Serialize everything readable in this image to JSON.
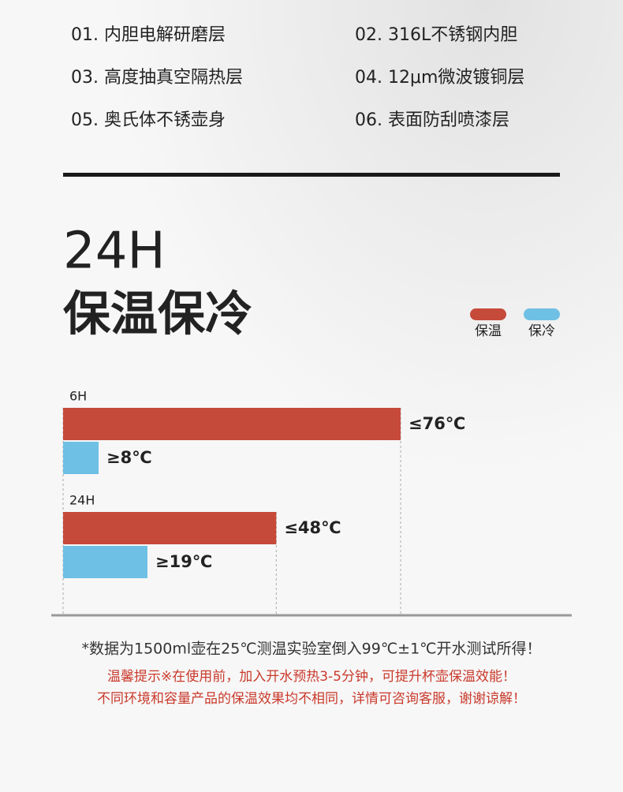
{
  "features": [
    "01. 内胆电解研磨层",
    "02. 316L不锈钢内胆",
    "03. 高度抽真空隔热层",
    "04. 12μm微波镀铜层",
    "05. 奥氏体不锈壶身",
    "06. 表面防刮喷漆层"
  ],
  "heading": {
    "line1": "24H",
    "line2": "保温保冷"
  },
  "chart_data": {
    "type": "bar",
    "orientation": "horizontal",
    "categories": [
      "6H",
      "24H"
    ],
    "series": [
      {
        "name": "保温",
        "color": "#c64a3a",
        "values": [
          76,
          48
        ],
        "value_labels": [
          "≤76℃",
          "≤48℃"
        ]
      },
      {
        "name": "保冷",
        "color": "#6ec0e4",
        "values": [
          8,
          19
        ],
        "value_labels": [
          "≥8℃",
          "≥19℃"
        ]
      }
    ]
  },
  "notes": [
    "*数据为1500ml壶在25℃测温实验室倒入99℃±1℃开水测试所得！",
    "温馨提示※在使用前，加入开水预热3-5分钟，可提升杯壶保温效能！",
    "不同环境和容量产品的保温效果均不相同，详情可咨询客服，谢谢谅解！"
  ]
}
